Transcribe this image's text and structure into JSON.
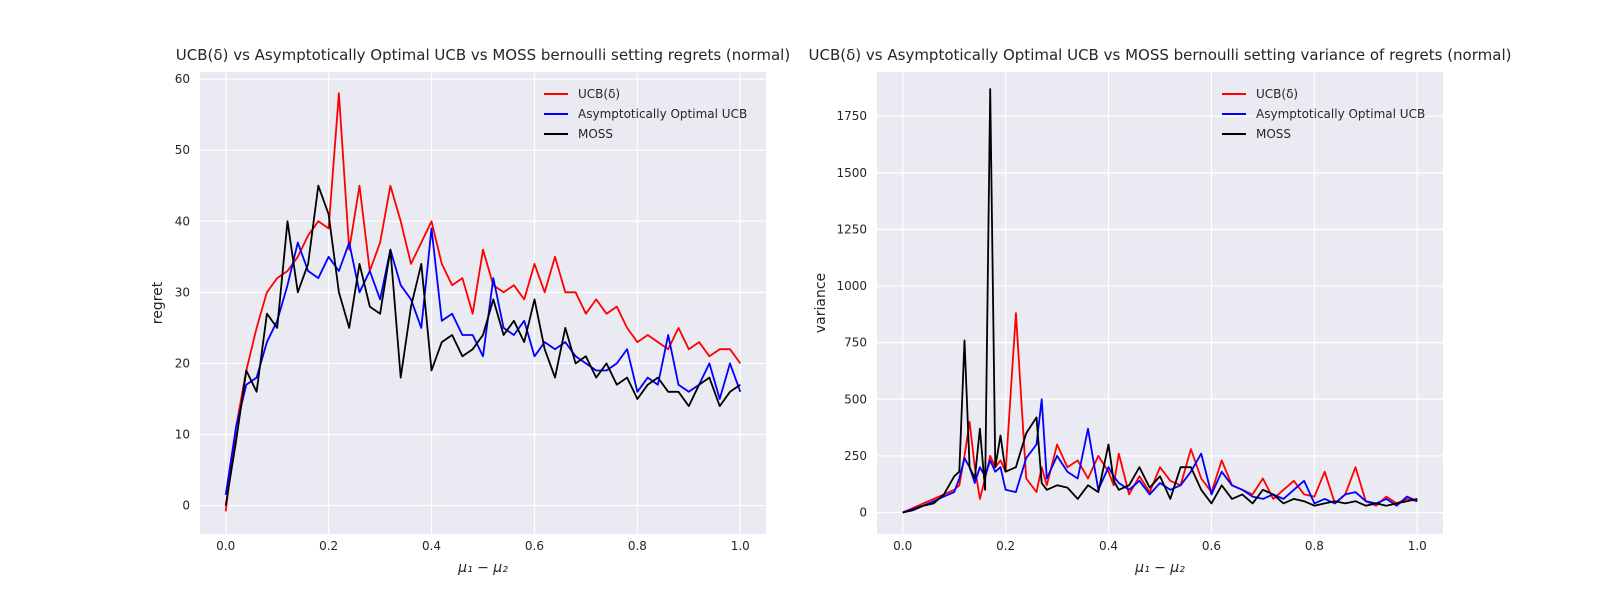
{
  "chart_data": [
    {
      "type": "line",
      "title": "UCB(δ) vs Asymptotically Optimal UCB vs MOSS bernoulli setting regrets (normal)",
      "xlabel": "μ₁ − μ₂",
      "ylabel": "regret",
      "xlim": [
        -0.05,
        1.05
      ],
      "ylim": [
        -4,
        61
      ],
      "xticks": [
        0.0,
        0.2,
        0.4,
        0.6,
        0.8,
        1.0
      ],
      "xtick_labels": [
        "0.0",
        "0.2",
        "0.4",
        "0.6",
        "0.8",
        "1.0"
      ],
      "yticks": [
        0,
        10,
        20,
        30,
        40,
        50,
        60
      ],
      "ytick_labels": [
        "0",
        "10",
        "20",
        "30",
        "40",
        "50",
        "60"
      ],
      "grid": true,
      "legend_position": "top-right",
      "x": [
        0.0,
        0.02,
        0.04,
        0.06,
        0.08,
        0.1,
        0.12,
        0.14,
        0.16,
        0.18,
        0.2,
        0.22,
        0.24,
        0.26,
        0.28,
        0.3,
        0.32,
        0.34,
        0.36,
        0.38,
        0.4,
        0.42,
        0.44,
        0.46,
        0.48,
        0.5,
        0.52,
        0.54,
        0.56,
        0.58,
        0.6,
        0.62,
        0.64,
        0.66,
        0.68,
        0.7,
        0.72,
        0.74,
        0.76,
        0.78,
        0.8,
        0.82,
        0.84,
        0.86,
        0.88,
        0.9,
        0.92,
        0.94,
        0.96,
        0.98,
        1.0
      ],
      "series": [
        {
          "name": "UCB(δ)",
          "color": "#ff0000",
          "values": [
            -0.8,
            11,
            19,
            25,
            30,
            32,
            33,
            35,
            38,
            40,
            39,
            58,
            36,
            45,
            33,
            37,
            45,
            40,
            34,
            37,
            40,
            34,
            31,
            32,
            27,
            36,
            31,
            30,
            31,
            29,
            34,
            30,
            35,
            30,
            30,
            27,
            29,
            27,
            28,
            25,
            23,
            24,
            23,
            22,
            25,
            22,
            23,
            21,
            22,
            22,
            20
          ]
        },
        {
          "name": "Asymptotically Optimal UCB",
          "color": "#0000ff",
          "values": [
            1.5,
            11,
            17,
            18,
            23,
            26,
            31,
            37,
            33,
            32,
            35,
            33,
            37,
            30,
            33,
            29,
            36,
            31,
            29,
            25,
            39,
            26,
            27,
            24,
            24,
            21,
            32,
            25,
            24,
            26,
            21,
            23,
            22,
            23,
            21,
            20,
            19,
            19,
            20,
            22,
            16,
            18,
            17,
            24,
            17,
            16,
            17,
            20,
            15,
            20,
            16
          ]
        },
        {
          "name": "MOSS",
          "color": "#000000",
          "values": [
            0,
            9,
            19,
            16,
            27,
            25,
            40,
            30,
            34,
            45,
            41,
            30,
            25,
            34,
            28,
            27,
            36,
            18,
            28,
            34,
            19,
            23,
            24,
            21,
            22,
            24,
            29,
            24,
            26,
            23,
            29,
            22,
            18,
            25,
            20,
            21,
            18,
            20,
            17,
            18,
            15,
            17,
            18,
            16,
            16,
            14,
            17,
            18,
            14,
            16,
            17
          ]
        }
      ]
    },
    {
      "type": "line",
      "title": "UCB(δ) vs Asymptotically Optimal UCB vs MOSS bernoulli setting variance of regrets (normal)",
      "xlabel": "μ₁ − μ₂",
      "ylabel": "variance",
      "xlim": [
        -0.05,
        1.05
      ],
      "ylim": [
        -95,
        1945
      ],
      "xticks": [
        0.0,
        0.2,
        0.4,
        0.6,
        0.8,
        1.0
      ],
      "xtick_labels": [
        "0.0",
        "0.2",
        "0.4",
        "0.6",
        "0.8",
        "1.0"
      ],
      "yticks": [
        0,
        250,
        500,
        750,
        1000,
        1250,
        1500,
        1750
      ],
      "ytick_labels": [
        "0",
        "250",
        "500",
        "750",
        "1000",
        "1250",
        "1500",
        "1750"
      ],
      "grid": true,
      "legend_position": "top-right",
      "x": [
        0.0,
        0.02,
        0.04,
        0.06,
        0.08,
        0.1,
        0.11,
        0.12,
        0.13,
        0.14,
        0.15,
        0.16,
        0.17,
        0.18,
        0.19,
        0.2,
        0.22,
        0.24,
        0.26,
        0.27,
        0.28,
        0.3,
        0.32,
        0.34,
        0.36,
        0.38,
        0.4,
        0.41,
        0.42,
        0.44,
        0.46,
        0.48,
        0.5,
        0.52,
        0.54,
        0.56,
        0.58,
        0.6,
        0.62,
        0.64,
        0.66,
        0.68,
        0.7,
        0.72,
        0.74,
        0.76,
        0.78,
        0.8,
        0.82,
        0.84,
        0.86,
        0.88,
        0.9,
        0.92,
        0.94,
        0.96,
        0.98,
        1.0
      ],
      "series": [
        {
          "name": "UCB(δ)",
          "color": "#ff0000",
          "values": [
            0,
            20,
            40,
            60,
            80,
            100,
            120,
            250,
            400,
            200,
            60,
            150,
            250,
            200,
            230,
            180,
            880,
            150,
            90,
            200,
            120,
            300,
            200,
            230,
            150,
            250,
            180,
            120,
            260,
            80,
            160,
            90,
            200,
            140,
            120,
            280,
            150,
            90,
            230,
            120,
            100,
            80,
            150,
            60,
            100,
            140,
            80,
            70,
            180,
            40,
            80,
            200,
            50,
            30,
            70,
            40,
            60,
            50
          ]
        },
        {
          "name": "Asymptotically Optimal UCB",
          "color": "#0000ff",
          "values": [
            0,
            15,
            30,
            50,
            70,
            90,
            150,
            240,
            200,
            130,
            200,
            160,
            230,
            180,
            200,
            100,
            90,
            240,
            300,
            500,
            150,
            250,
            180,
            150,
            370,
            100,
            200,
            160,
            130,
            100,
            140,
            80,
            130,
            100,
            120,
            180,
            260,
            80,
            180,
            120,
            100,
            70,
            60,
            80,
            60,
            100,
            140,
            40,
            60,
            40,
            80,
            90,
            50,
            40,
            60,
            30,
            70,
            50
          ]
        },
        {
          "name": "MOSS",
          "color": "#000000",
          "values": [
            0,
            10,
            30,
            40,
            80,
            160,
            180,
            760,
            200,
            150,
            370,
            100,
            1870,
            200,
            340,
            180,
            200,
            350,
            420,
            130,
            100,
            120,
            110,
            60,
            120,
            90,
            300,
            140,
            100,
            120,
            200,
            110,
            160,
            60,
            200,
            200,
            100,
            40,
            120,
            60,
            80,
            40,
            100,
            80,
            40,
            60,
            50,
            30,
            40,
            50,
            40,
            50,
            30,
            40,
            30,
            40,
            50,
            60
          ]
        }
      ]
    }
  ]
}
